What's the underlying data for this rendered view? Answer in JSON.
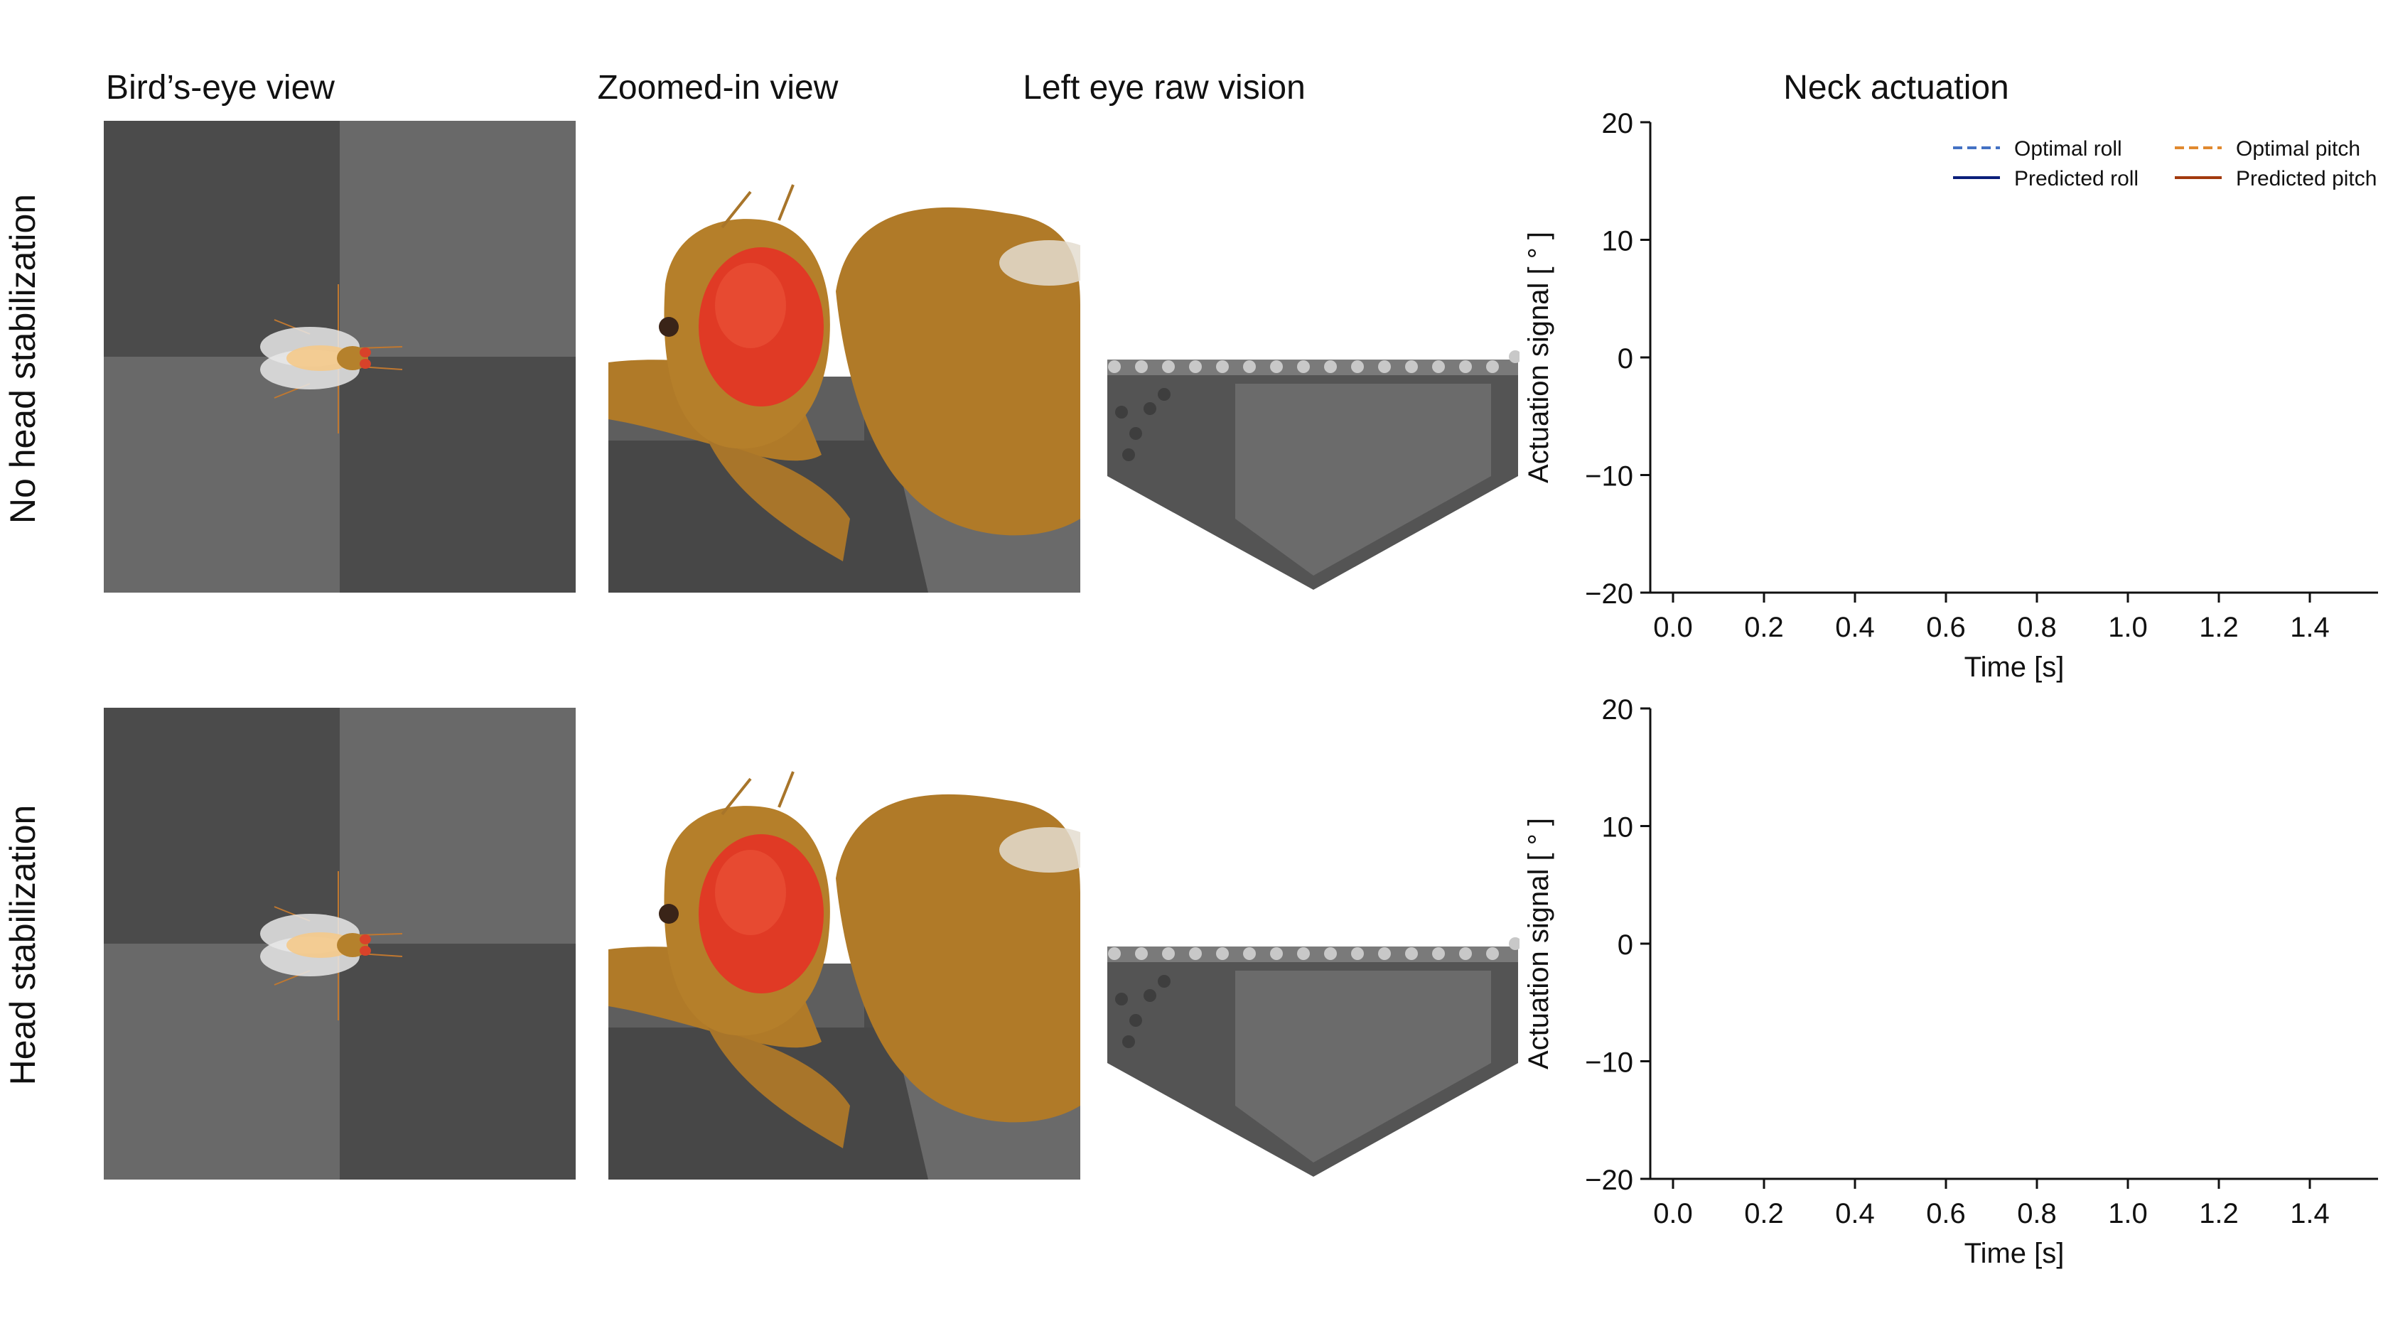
{
  "columns": {
    "birds_eye": "Bird’s-eye view",
    "zoomed": "Zoomed-in view",
    "left_eye": "Left eye raw vision",
    "neck": "Neck actuation"
  },
  "rows": {
    "top": "No head stabilization",
    "bottom": "Head stabilization"
  },
  "colors": {
    "optimal_roll": "#4472c4",
    "predicted_roll": "#0b1f7a",
    "optimal_pitch": "#e0892f",
    "predicted_pitch": "#a23a0e",
    "floor_dark": "#4b4b4b",
    "floor_light": "#6a6a6a",
    "fly_body": "#b5812c",
    "fly_eye": "#e03a25"
  },
  "chart_data": [
    {
      "type": "line",
      "row": "top",
      "title": "",
      "xlabel": "Time [s]",
      "ylabel": "Actuation signal [ ° ]",
      "xlim": [
        -0.05,
        1.55
      ],
      "ylim": [
        -20,
        20
      ],
      "xticks": [
        0.0,
        0.2,
        0.4,
        0.6,
        0.8,
        1.0,
        1.2,
        1.4
      ],
      "xtick_labels": [
        "0.0",
        "0.2",
        "0.4",
        "0.6",
        "0.8",
        "1.0",
        "1.2",
        "1.4"
      ],
      "yticks": [
        20,
        10,
        0,
        -10,
        -20
      ],
      "ytick_labels": [
        "20",
        "10",
        "0",
        "−10",
        "−20"
      ],
      "legend": "top-right",
      "series": [
        {
          "name": "Optimal roll",
          "style": "dashed",
          "x": [],
          "values": []
        },
        {
          "name": "Optimal pitch",
          "style": "dashed",
          "x": [],
          "values": []
        },
        {
          "name": "Predicted roll",
          "style": "solid",
          "x": [],
          "values": []
        },
        {
          "name": "Predicted pitch",
          "style": "solid",
          "x": [],
          "values": []
        }
      ]
    },
    {
      "type": "line",
      "row": "bottom",
      "title": "",
      "xlabel": "Time [s]",
      "ylabel": "Actuation signal [ ° ]",
      "xlim": [
        -0.05,
        1.55
      ],
      "ylim": [
        -20,
        20
      ],
      "xticks": [
        0.0,
        0.2,
        0.4,
        0.6,
        0.8,
        1.0,
        1.2,
        1.4
      ],
      "xtick_labels": [
        "0.0",
        "0.2",
        "0.4",
        "0.6",
        "0.8",
        "1.0",
        "1.2",
        "1.4"
      ],
      "yticks": [
        20,
        10,
        0,
        -10,
        -20
      ],
      "ytick_labels": [
        "20",
        "10",
        "0",
        "−10",
        "−20"
      ],
      "legend": "none",
      "series": []
    }
  ]
}
